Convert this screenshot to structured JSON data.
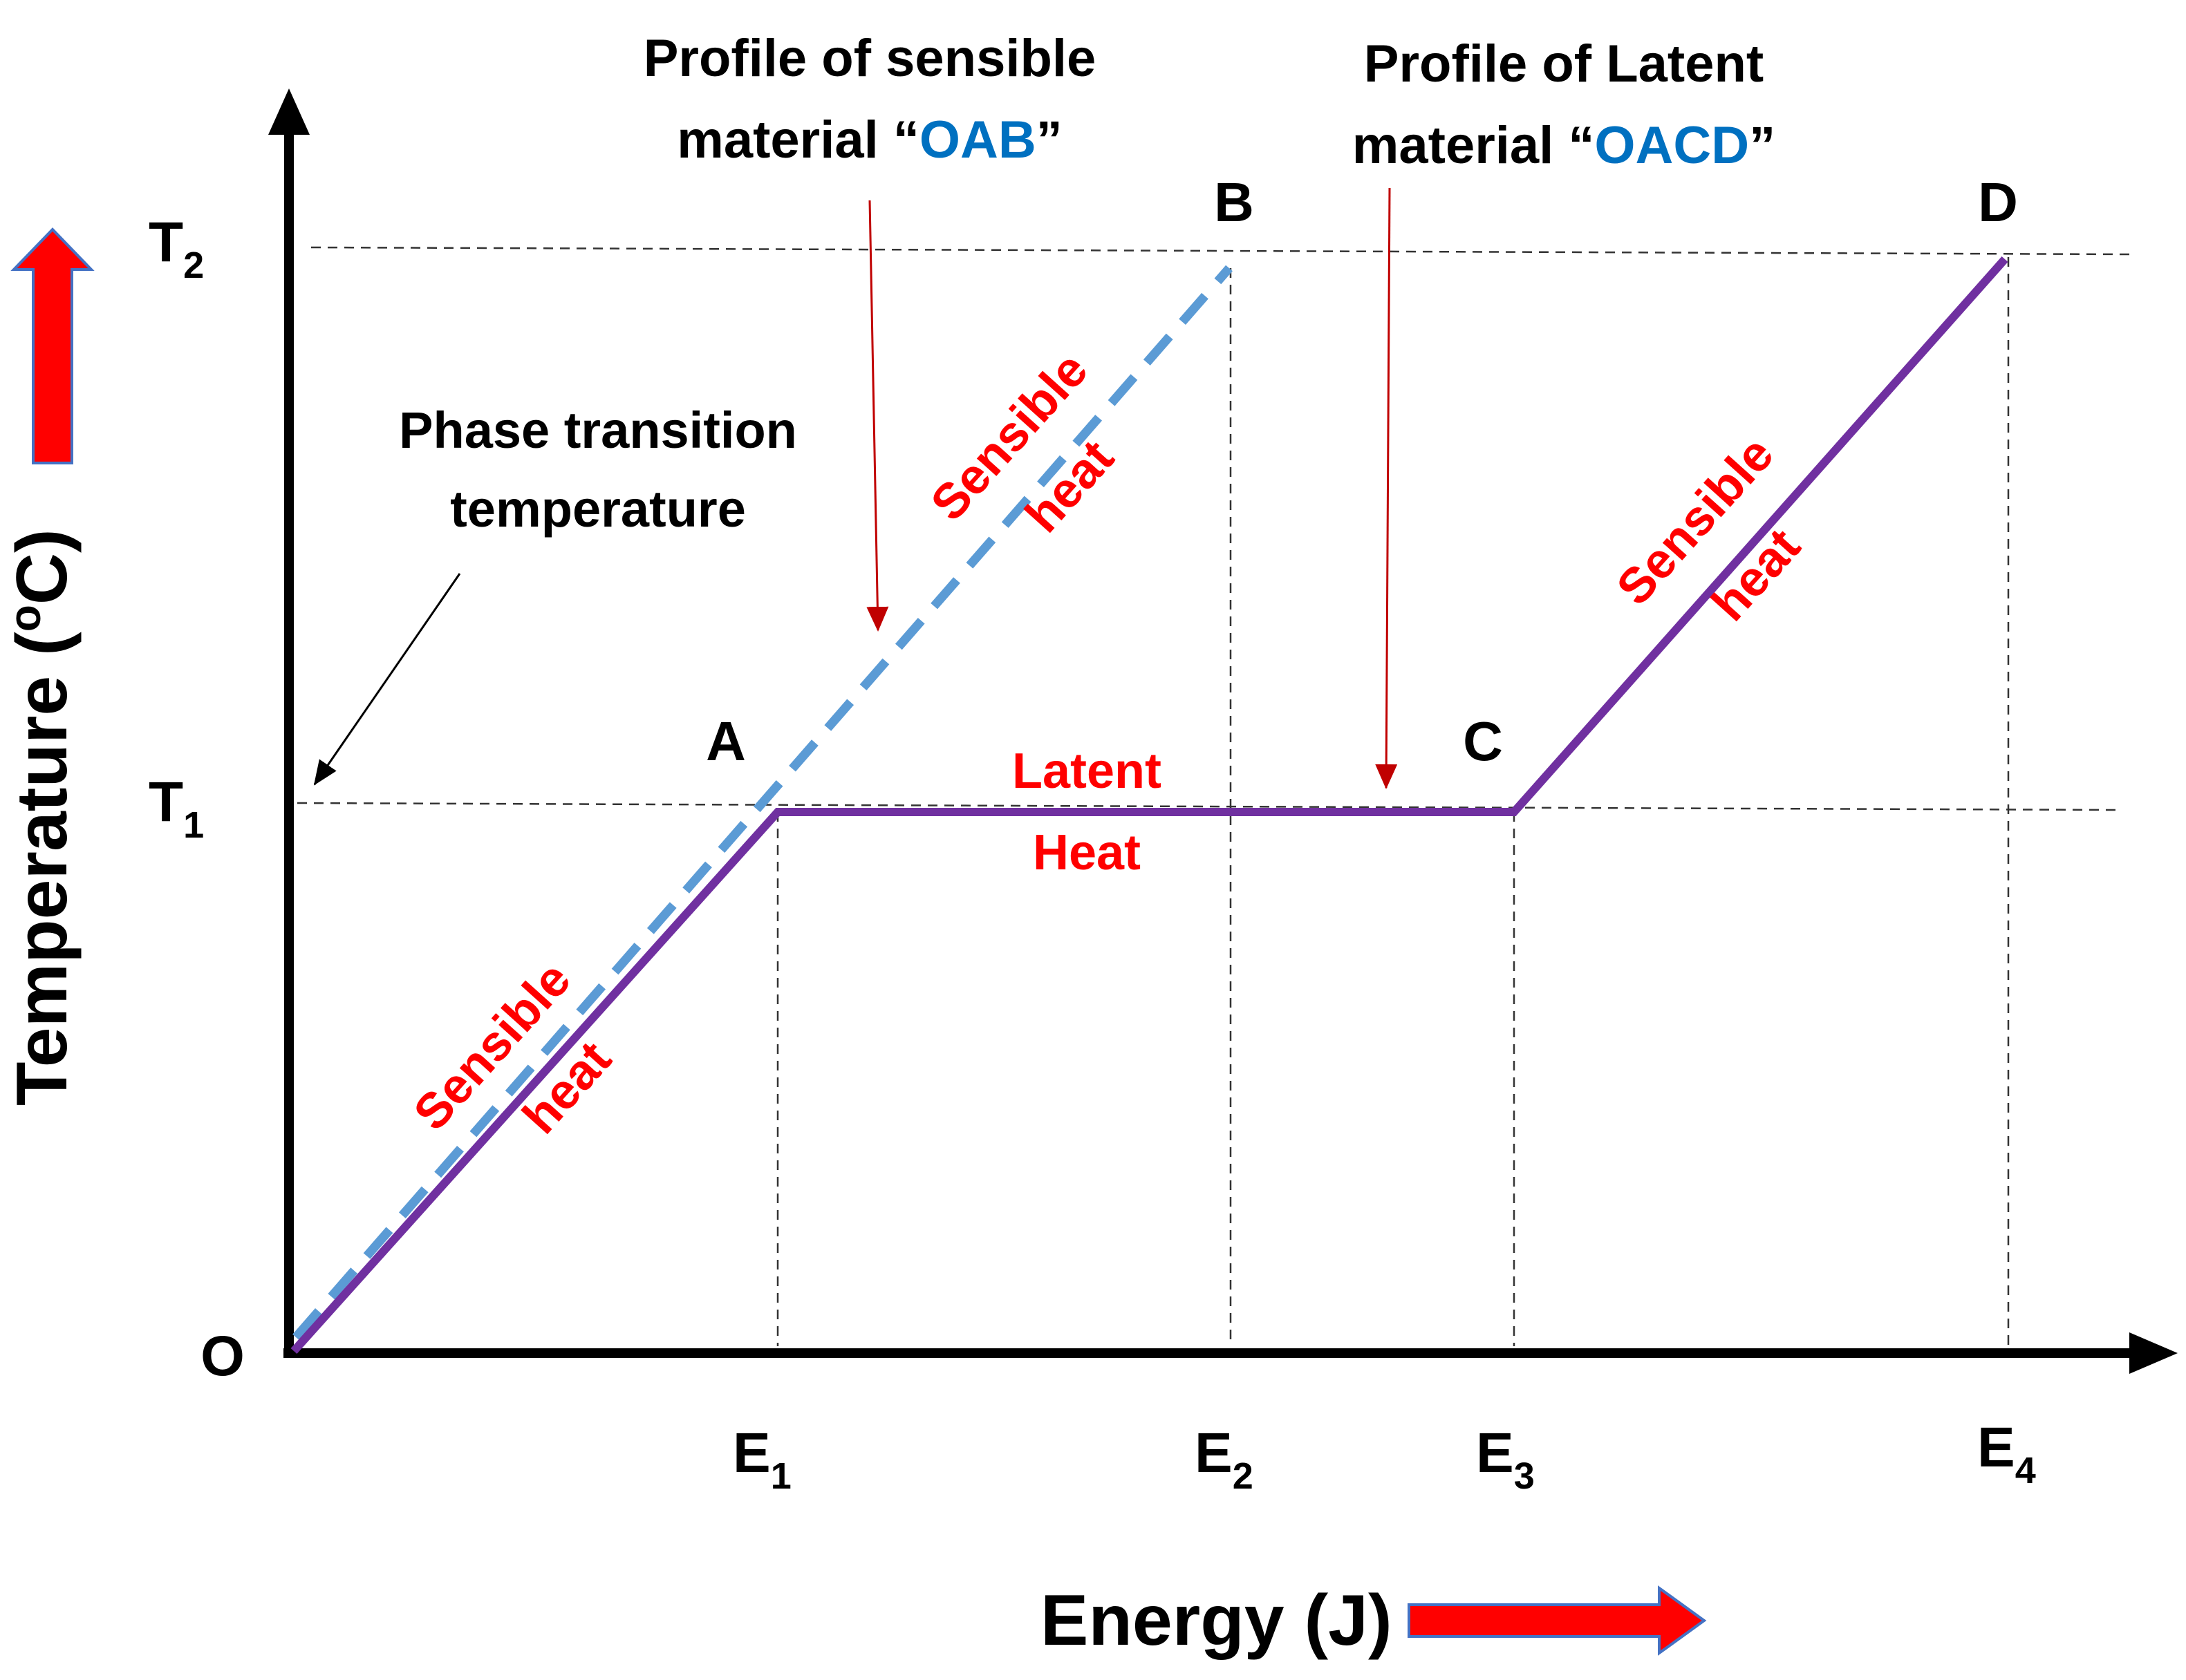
{
  "diagram": {
    "title_sensible_line1": "Profile of sensible",
    "title_sensible_line2_prefix": "material “",
    "title_sensible_code": "OAB",
    "title_sensible_line2_suffix": "”",
    "title_latent_line1": "Profile of Latent",
    "title_latent_line2_prefix": "material “",
    "title_latent_code": "OACD",
    "title_latent_line2_suffix": "”",
    "phase_line1": "Phase transition",
    "phase_line2": "temperature",
    "y_axis_label_main": "Temperature (",
    "y_axis_label_sup": "o",
    "y_axis_label_end": "C)",
    "x_axis_label": "Energy (J)",
    "origin_label": "O",
    "points": {
      "A": "A",
      "B": "B",
      "C": "C",
      "D": "D"
    },
    "y_ticks": [
      {
        "main": "T",
        "sub": "1"
      },
      {
        "main": "T",
        "sub": "2"
      }
    ],
    "x_ticks": [
      {
        "main": "E",
        "sub": "1"
      },
      {
        "main": "E",
        "sub": "2"
      },
      {
        "main": "E",
        "sub": "3"
      },
      {
        "main": "E",
        "sub": "4"
      }
    ],
    "region_labels": {
      "sensible_word": "Sensible",
      "heat_word": "heat",
      "latent_word": "Latent",
      "latent_heat_word": "Heat"
    },
    "colors": {
      "axis": "#000000",
      "sensible_line": "#5B9BD5",
      "latent_line": "#7030A0",
      "region_text": "#FF0000",
      "code_text": "#0070C0",
      "pointer_arrow": "#C00000",
      "indicator_arrow": "#FF0000",
      "indicator_outline": "#4472C4",
      "guide": "#333333"
    }
  }
}
